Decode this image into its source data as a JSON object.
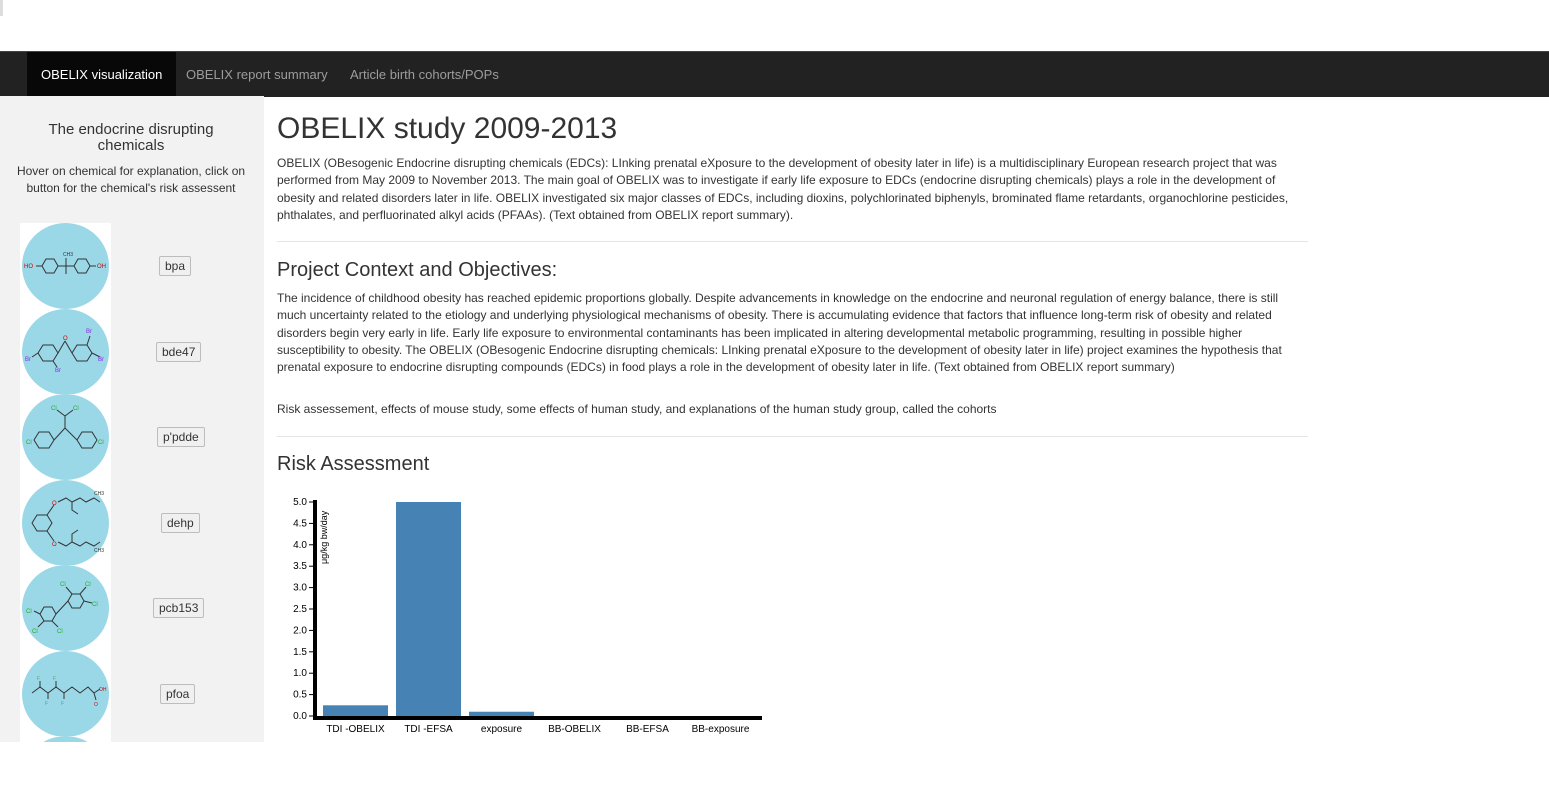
{
  "navbar": {
    "tabs": [
      {
        "label": "OBELIX visualization",
        "active": true
      },
      {
        "label": "OBELIX report summary",
        "active": false
      },
      {
        "label": "Article birth cohorts/POPs",
        "active": false
      }
    ]
  },
  "sidebar": {
    "title": "The endocrine disrupting chemicals",
    "hint": "Hover on chemical for explanation, click on button for the chemical's risk assessent",
    "chemicals": [
      {
        "button": "bpa",
        "labels": [
          "HO",
          "OH",
          "CH3"
        ]
      },
      {
        "button": "bde47",
        "labels": [
          "O",
          "Br",
          "Br",
          "Br",
          "Br"
        ]
      },
      {
        "button": "p'pdde",
        "labels": [
          "Cl",
          "Cl",
          "Cl",
          "Cl"
        ]
      },
      {
        "button": "dehp",
        "labels": [
          "O",
          "O",
          "CH3",
          "CH3"
        ]
      },
      {
        "button": "pcb153",
        "labels": [
          "Cl",
          "Cl",
          "Cl",
          "Cl",
          "Cl",
          "Cl"
        ]
      },
      {
        "button": "pfoa",
        "labels": [
          "F",
          "F",
          "F",
          "F",
          "OH",
          "O"
        ]
      }
    ]
  },
  "main": {
    "title": "OBELIX study 2009-2013",
    "intro": "OBELIX (OBesogenic Endocrine disrupting chemicals (EDCs): LInking prenatal eXposure to the development of obesity later in life) is a multidisciplinary European research project that was performed from May 2009 to November 2013. The main goal of OBELIX was to investigate if early life exposure to EDCs (endocrine disrupting chemicals) plays a role in the development of obesity and related disorders later in life. OBELIX investigated six major classes of EDCs, including dioxins, polychlorinated biphenyls, brominated flame retardants, organochlorine pesticides, phthalates, and perfluorinated alkyl acids (PFAAs). (Text obtained from OBELIX report summary).",
    "context_heading": "Project Context and Objectives:",
    "context_text": "The incidence of childhood obesity has reached epidemic proportions globally. Despite advancements in knowledge on the endocrine and neuronal regulation of energy balance, there is still much uncertainty related to the etiology and underlying physiological mechanisms of obesity. There is accumulating evidence that factors that influence long-term risk of obesity and related disorders begin very early in life. Early life exposure to environmental contaminants has been implicated in altering developmental metabolic programming, resulting in possible higher susceptibility to obesity. The OBELIX (OBesogenic Endocrine disrupting chemicals: LInking prenatal eXposure to the development of obesity later in life) project examines the hypothesis that prenatal exposure to endocrine disrupting compounds (EDCs) in food plays a role in the development of obesity later in life. (Text obtained from OBELIX report summary)",
    "context_text2": "Risk assessement, effects of mouse study, some effects of human study, and explanations of the human study group, called the cohorts",
    "risk_heading": "Risk Assessment"
  },
  "chart_data": {
    "type": "bar",
    "title": "",
    "xlabel": "",
    "ylabel": "μg/kg bw/day",
    "categories": [
      "TDI -OBELIX",
      "TDI -EFSA",
      "exposure",
      "BB-OBELIX",
      "BB-EFSA",
      "BB-exposure"
    ],
    "values": [
      0.25,
      5.0,
      0.1,
      0,
      0,
      0
    ],
    "yticks": [
      "0.0",
      "0.5",
      "1.0",
      "1.5",
      "2.0",
      "2.5",
      "3.0",
      "3.5",
      "4.0",
      "4.5",
      "5.0"
    ],
    "ylim": [
      0,
      5
    ],
    "bar_color": "#4682b4",
    "grid": false
  }
}
